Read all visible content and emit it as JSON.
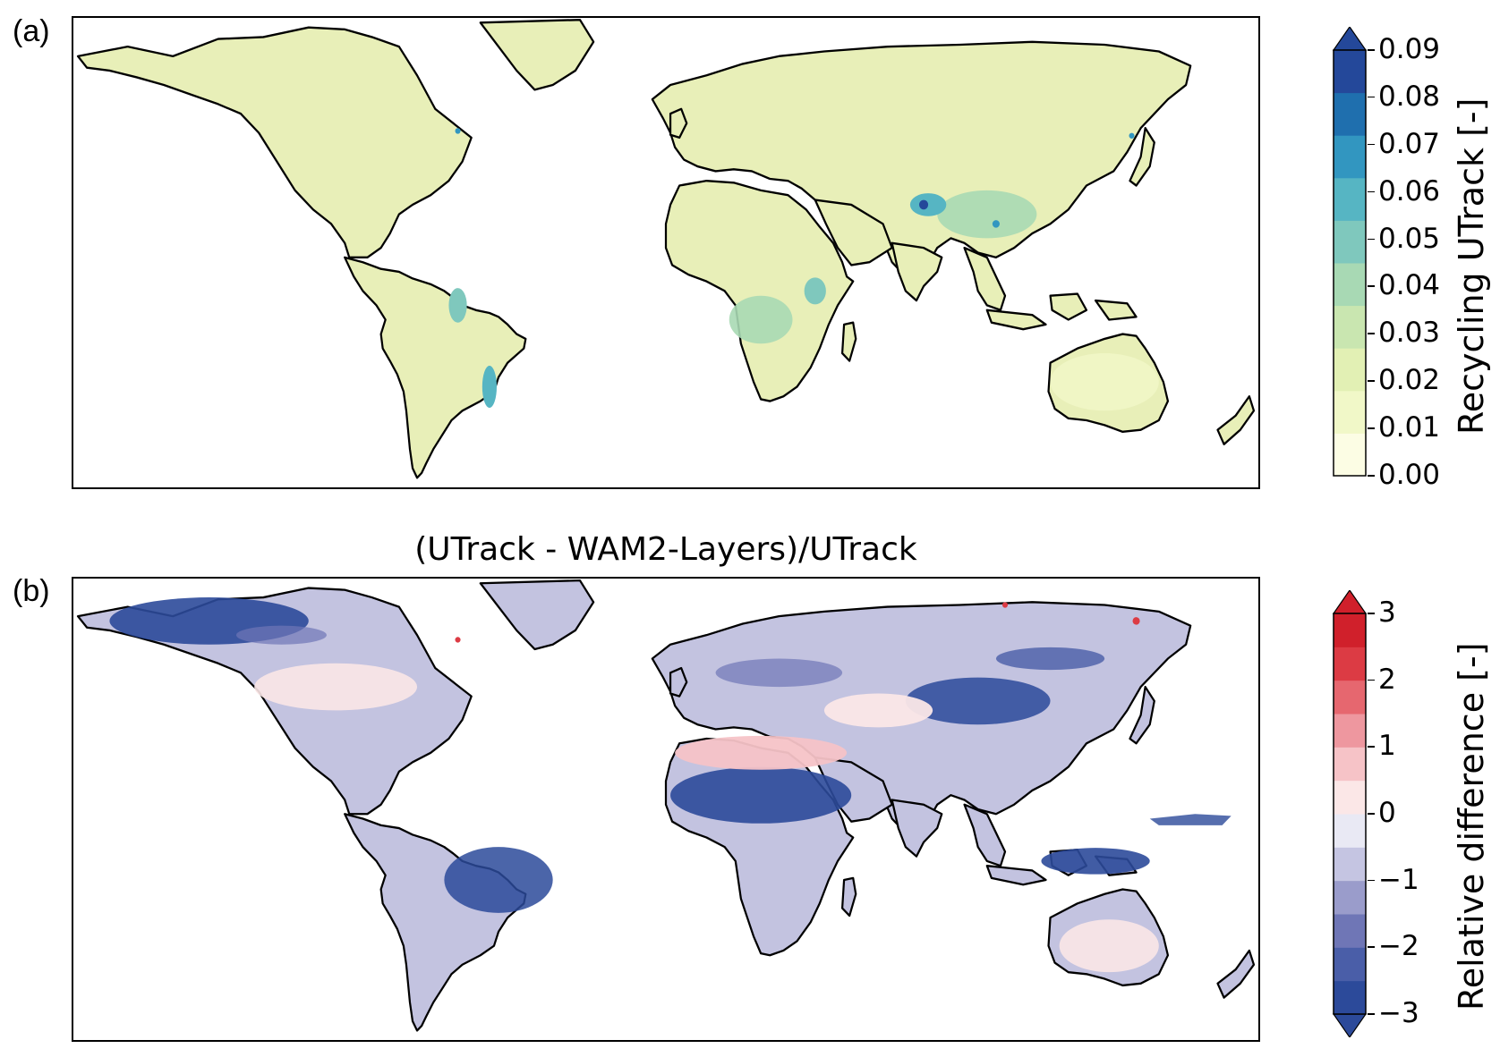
{
  "panels": [
    {
      "label": "(a)",
      "title": "",
      "colorbar": {
        "title": "Recycling UTrack [-]",
        "ticks": [
          "0.00",
          "0.01",
          "0.02",
          "0.03",
          "0.04",
          "0.05",
          "0.06",
          "0.07",
          "0.08",
          "0.09"
        ],
        "colors": [
          "#fcfde4",
          "#f1f8c8",
          "#e2f0b4",
          "#c9e6b0",
          "#a8d9b4",
          "#7fc8bd",
          "#56b5c3",
          "#3296c0",
          "#1f6fae",
          "#24489a"
        ],
        "extend": "max"
      },
      "land_color": "#e8efb8"
    },
    {
      "label": "(b)",
      "title": "(UTrack - WAM2-Layers)/UTrack",
      "colorbar": {
        "title": "Relative difference [-]",
        "ticks": [
          "−3",
          "−2",
          "−1",
          "0",
          "1",
          "2",
          "3"
        ],
        "colors": [
          "#2c4a9a",
          "#4a5ea8",
          "#6f76b6",
          "#9a9ccb",
          "#c5c5e2",
          "#e9e9f4",
          "#fbe7e7",
          "#f6c3c7",
          "#ee979f",
          "#e6676f",
          "#dc3b44",
          "#d0202b"
        ],
        "extend": "both"
      },
      "land_color": "#c3c3e0"
    }
  ]
}
